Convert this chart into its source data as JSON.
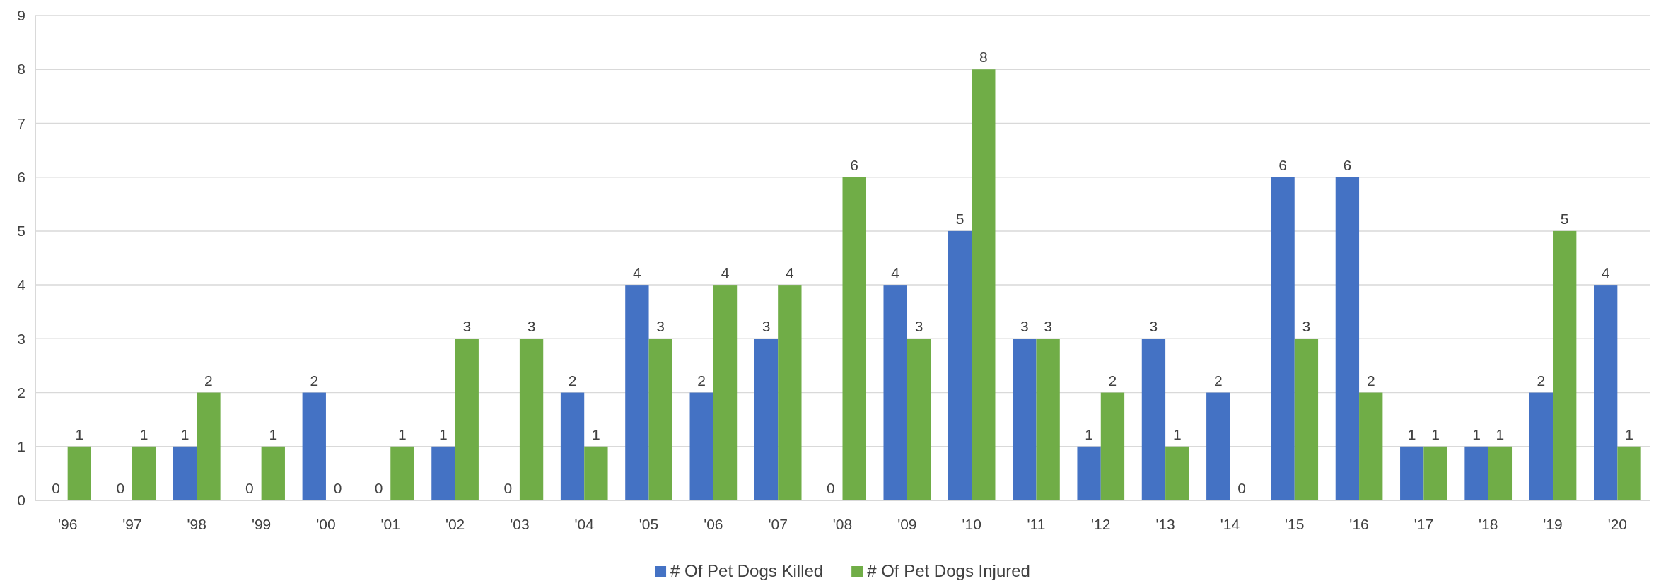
{
  "chart_data": {
    "type": "bar",
    "categories": [
      "'96",
      "'97",
      "'98",
      "'99",
      "'00",
      "'01",
      "'02",
      "'03",
      "'04",
      "'05",
      "'06",
      "'07",
      "'08",
      "'09",
      "'10",
      "'11",
      "'12",
      "'13",
      "'14",
      "'15",
      "'16",
      "'17",
      "'18",
      "'19",
      "'20"
    ],
    "series": [
      {
        "name": "# Of Pet Dogs Killed",
        "color": "#4472c4",
        "values": [
          0,
          0,
          1,
          0,
          2,
          0,
          1,
          0,
          2,
          4,
          2,
          3,
          0,
          4,
          5,
          3,
          1,
          3,
          2,
          6,
          6,
          1,
          1,
          2,
          4
        ]
      },
      {
        "name": "# Of Pet Dogs Injured",
        "color": "#70ad47",
        "values": [
          1,
          1,
          2,
          1,
          0,
          1,
          3,
          3,
          1,
          3,
          4,
          4,
          6,
          3,
          8,
          3,
          2,
          1,
          0,
          3,
          2,
          1,
          1,
          5,
          1
        ]
      }
    ],
    "ylim": [
      0,
      9
    ],
    "yticks": [
      0,
      1,
      2,
      3,
      4,
      5,
      6,
      7,
      8,
      9
    ],
    "grid": "y",
    "legend": "bottom",
    "data_labels": true
  }
}
